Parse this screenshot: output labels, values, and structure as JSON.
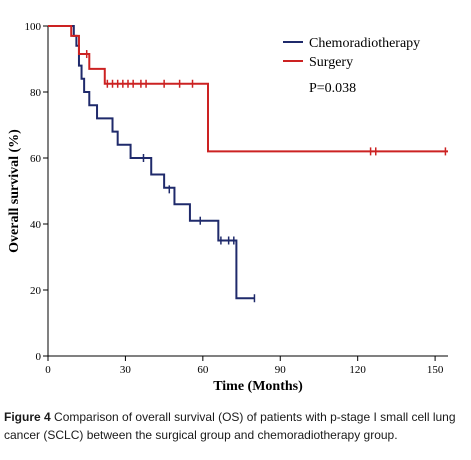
{
  "chart_data": {
    "type": "line",
    "title": "",
    "xlabel": "Time (Months)",
    "ylabel": "Overall survival (%)",
    "xlim": [
      0,
      155
    ],
    "ylim": [
      0,
      100
    ],
    "x_ticks": [
      0,
      30,
      60,
      90,
      120,
      150
    ],
    "y_ticks": [
      0,
      20,
      40,
      60,
      80,
      100
    ],
    "grid": false,
    "legend_position": "top-right",
    "annotation": "P=0.038",
    "series": [
      {
        "name": "Chemoradiotherapy",
        "color": "#1f2a6b",
        "steps": [
          [
            0,
            100
          ],
          [
            10,
            100
          ],
          [
            10,
            97
          ],
          [
            11,
            94
          ],
          [
            12,
            88
          ],
          [
            13,
            84
          ],
          [
            14,
            80
          ],
          [
            16,
            76
          ],
          [
            19,
            72
          ],
          [
            25,
            68
          ],
          [
            27,
            64
          ],
          [
            32,
            60
          ],
          [
            40,
            55
          ],
          [
            45,
            51
          ],
          [
            49,
            46
          ],
          [
            55,
            41
          ],
          [
            62,
            41
          ],
          [
            66,
            35
          ],
          [
            73,
            35
          ],
          [
            73,
            17.5
          ],
          [
            80,
            17.5
          ]
        ],
        "censored": [
          [
            37,
            60
          ],
          [
            47,
            50.5
          ],
          [
            59,
            41
          ],
          [
            67,
            35
          ],
          [
            70,
            35
          ],
          [
            72,
            35
          ],
          [
            80,
            17.5
          ]
        ]
      },
      {
        "name": "Surgery",
        "color": "#cc2222",
        "steps": [
          [
            0,
            100
          ],
          [
            9,
            100
          ],
          [
            9,
            97
          ],
          [
            12,
            91.5
          ],
          [
            16,
            87
          ],
          [
            22,
            82.5
          ],
          [
            62,
            82.5
          ],
          [
            62,
            62
          ],
          [
            155,
            62
          ]
        ],
        "censored": [
          [
            15,
            91.5
          ],
          [
            23,
            82.5
          ],
          [
            25,
            82.5
          ],
          [
            27,
            82.5
          ],
          [
            29,
            82.5
          ],
          [
            31,
            82.5
          ],
          [
            33,
            82.5
          ],
          [
            36,
            82.5
          ],
          [
            38,
            82.5
          ],
          [
            45,
            82.5
          ],
          [
            51,
            82.5
          ],
          [
            56,
            82.5
          ],
          [
            125,
            62
          ],
          [
            127,
            62
          ],
          [
            154,
            62
          ]
        ]
      }
    ]
  },
  "caption": {
    "label": "Figure 4",
    "text": " Comparison of overall survival (OS) of patients with p-stage I small cell lung cancer (SCLC) between the surgical group and chemoradiotherapy group."
  }
}
